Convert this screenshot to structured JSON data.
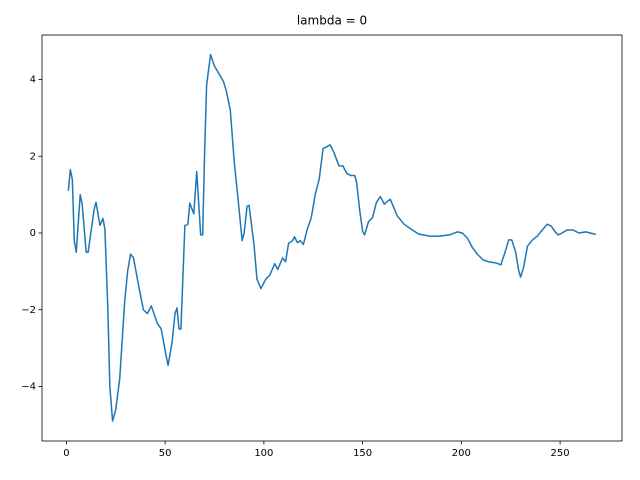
{
  "chart_data": {
    "type": "line",
    "title": "lambda = 0",
    "color": "#1f77b4",
    "x": [
      1,
      2,
      3,
      4,
      5,
      7,
      8,
      10,
      11,
      14,
      15,
      17,
      18.5,
      19.5,
      21,
      22,
      23.4,
      25,
      27,
      29.5,
      31,
      32.5,
      34,
      36.5,
      39,
      41,
      43,
      45,
      46,
      48,
      50.5,
      51.5,
      53.5,
      55,
      56,
      57,
      58,
      60,
      61.5,
      62.5,
      64.5,
      66,
      68,
      69,
      70,
      71,
      73,
      75,
      79.5,
      81,
      83,
      85,
      87,
      89,
      90,
      91.5,
      92.5,
      95,
      96.5,
      98.5,
      101,
      103,
      105.5,
      107,
      109.5,
      111,
      112.5,
      114.5,
      115.5,
      117,
      118.5,
      120,
      122,
      124,
      126,
      128,
      130,
      132,
      133.5,
      135.5,
      138,
      140,
      142,
      144,
      146,
      147,
      148.5,
      150,
      151,
      153,
      155,
      157,
      159,
      161,
      162,
      164,
      165.5,
      167.5,
      171,
      174.5,
      178.5,
      184,
      189,
      194,
      198,
      200.5,
      203,
      205.5,
      208,
      211,
      214.5,
      217.5,
      220,
      222,
      224,
      225.5,
      227.5,
      229,
      230,
      231.5,
      233.5,
      236,
      238.5,
      240.5,
      243.5,
      245.5,
      247.5,
      249,
      251,
      253.5,
      256.5,
      259.5,
      263,
      267.5,
      268
    ],
    "values": [
      1.1,
      1.65,
      1.4,
      -0.2,
      -0.5,
      1.0,
      0.75,
      -0.5,
      -0.5,
      0.6,
      0.8,
      0.2,
      0.38,
      0.1,
      -2,
      -4,
      -4.9,
      -4.6,
      -3.8,
      -1.8,
      -1,
      -0.55,
      -0.65,
      -1.35,
      -2.0,
      -2.1,
      -1.9,
      -2.2,
      -2.35,
      -2.5,
      -3.2,
      -3.45,
      -2.85,
      -2.1,
      -1.95,
      -2.5,
      -2.5,
      0.2,
      0.22,
      0.78,
      0.5,
      1.6,
      -0.05,
      -0.05,
      2.1,
      3.85,
      4.65,
      4.35,
      3.95,
      3.7,
      3.2,
      1.85,
      0.85,
      -0.2,
      0,
      0.7,
      0.72,
      -0.3,
      -1.2,
      -1.45,
      -1.2,
      -1.1,
      -0.8,
      -0.95,
      -0.65,
      -0.75,
      -0.27,
      -0.2,
      -0.1,
      -0.25,
      -0.2,
      -0.3,
      0.1,
      0.4,
      1.0,
      1.4,
      2.2,
      2.25,
      2.3,
      2.1,
      1.75,
      1.75,
      1.55,
      1.5,
      1.5,
      1.3,
      0.6,
      0.05,
      -0.05,
      0.3,
      0.4,
      0.8,
      0.95,
      0.75,
      0.8,
      0.88,
      0.7,
      0.45,
      0.23,
      0.1,
      -0.03,
      -0.08,
      -0.08,
      -0.05,
      0.03,
      0,
      -0.13,
      -0.37,
      -0.55,
      -0.7,
      -0.76,
      -0.78,
      -0.83,
      -0.52,
      -0.18,
      -0.18,
      -0.5,
      -0.97,
      -1.15,
      -0.9,
      -0.34,
      -0.18,
      -0.08,
      0.05,
      0.23,
      0.18,
      0.03,
      -0.05,
      0,
      0.08,
      0.08,
      0,
      0.03,
      -0.03,
      -0.04
    ],
    "xlim": [
      -12.35,
      281.35
    ],
    "ylim": [
      -5.42,
      5.16
    ],
    "xticks": [
      0,
      50,
      100,
      150,
      200,
      250
    ],
    "yticks": [
      {
        "value": -4,
        "label": "−4"
      },
      {
        "value": -2,
        "label": "−2"
      },
      0,
      2,
      4
    ],
    "grid": false
  }
}
